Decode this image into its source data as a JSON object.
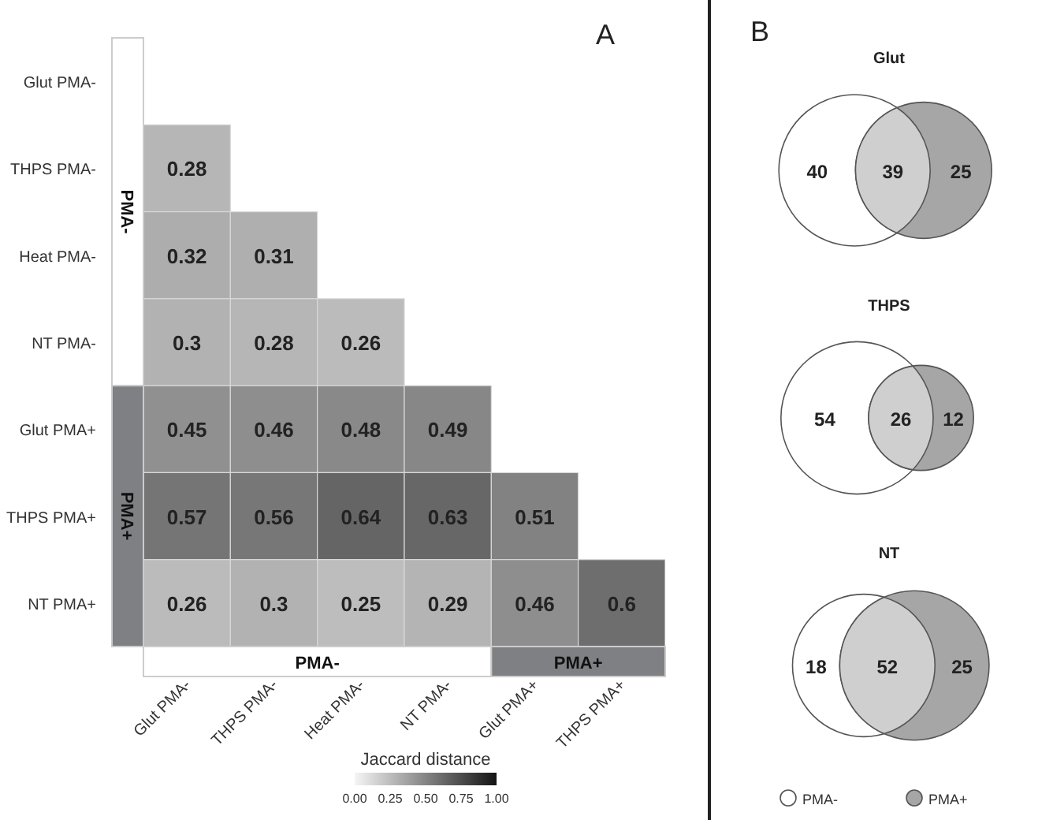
{
  "chart_data": [
    {
      "type": "heatmap",
      "title": "A",
      "clabel": "Jaccard distance",
      "categories": [
        "Glut PMA-",
        "THPS PMA-",
        "Heat PMA-",
        "NT PMA-",
        "Glut PMA+",
        "THPS PMA+"
      ],
      "y_categories": [
        "Glut PMA-",
        "THPS PMA-",
        "Heat PMA-",
        "NT PMA-",
        "Glut PMA+",
        "THPS PMA+",
        "NT PMA+"
      ],
      "cells": [
        [
          null,
          null,
          null,
          null,
          null,
          null
        ],
        [
          0.28,
          null,
          null,
          null,
          null,
          null
        ],
        [
          0.32,
          0.31,
          null,
          null,
          null,
          null
        ],
        [
          0.3,
          0.28,
          0.26,
          null,
          null,
          null
        ],
        [
          0.45,
          0.46,
          0.48,
          0.49,
          null,
          null
        ],
        [
          0.57,
          0.56,
          0.64,
          0.63,
          0.51,
          null
        ],
        [
          0.26,
          0.3,
          0.25,
          0.29,
          0.46,
          0.6
        ]
      ],
      "clim": [
        0,
        1
      ],
      "cticks": [
        {
          "value": 0,
          "label": "0.00"
        },
        {
          "value": 0.25,
          "label": "0.25"
        },
        {
          "value": 0.5,
          "label": "0.50"
        },
        {
          "value": 0.75,
          "label": "0.75"
        },
        {
          "value": 1,
          "label": "1.00"
        }
      ],
      "data_labels": true,
      "annotations": [
        "PMA-",
        "PMA+",
        "PMA-",
        "PMA+"
      ]
    },
    {
      "type": "other",
      "title": "B",
      "categories": [
        "Glut",
        "THPS",
        "NT"
      ],
      "data_labels": true,
      "legend": "bottom",
      "series": [
        {
          "name": "PMA-",
          "color": "#ffffff",
          "values": [
            40,
            54,
            18
          ]
        },
        {
          "color": "#cfcfcf",
          "values": [
            39,
            26,
            52
          ]
        },
        {
          "name": "PMA+",
          "color": "#a6a6a6",
          "values": [
            25,
            12,
            25
          ]
        }
      ]
    }
  ]
}
